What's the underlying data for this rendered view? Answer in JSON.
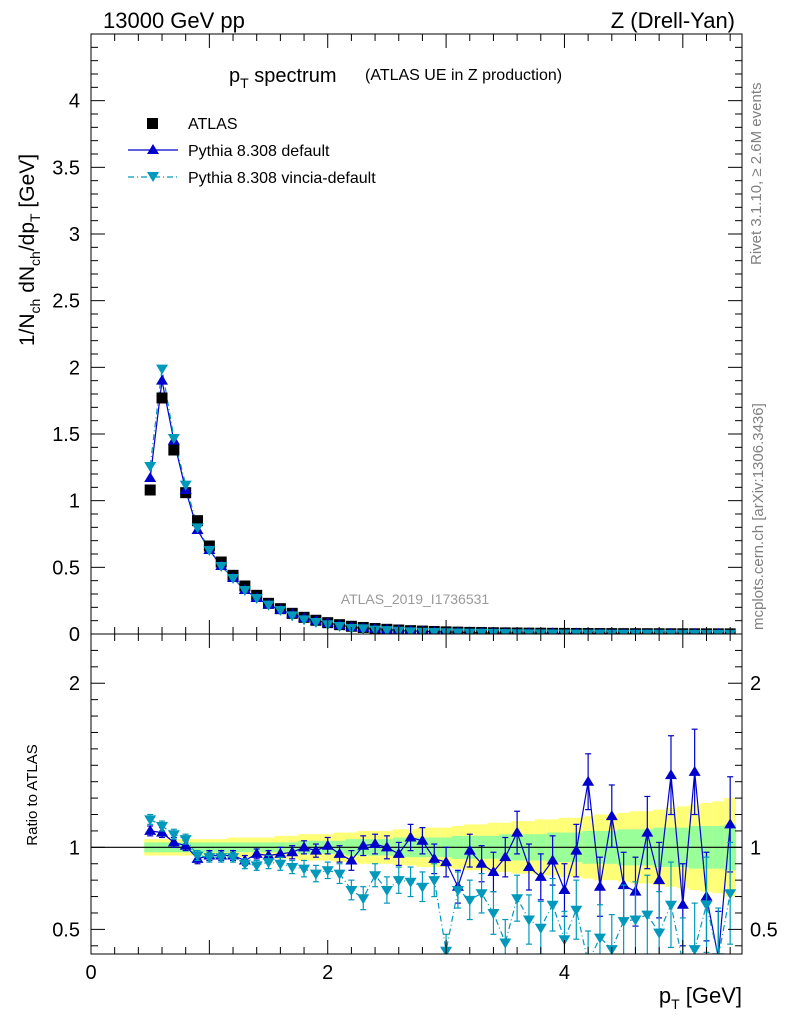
{
  "header": {
    "left": "13000 GeV pp",
    "right": "Z (Drell-Yan)"
  },
  "side": {
    "rivet": "Rivet 3.1.10, ≥ 2.6M events",
    "mcplots": "mcplots.cern.ch [arXiv:1306.3436]"
  },
  "main": {
    "title_main": "p",
    "title_sub": "T",
    "title_rest": " spectrum",
    "title_paren": "(ATLAS UE in Z production)",
    "ylabel": "1/N",
    "watermark": "ATLAS_2019_I1736531"
  },
  "ratio": {
    "ylabel": "Ratio to ATLAS"
  },
  "xaxis": {
    "label_main": "p",
    "label_sub": "T",
    "label_unit": " [GeV]"
  },
  "chart_data": [
    {
      "type": "scatter",
      "panel": "main",
      "xlim": [
        0,
        5.5
      ],
      "ylim": [
        0,
        4.5
      ],
      "yticks": [
        "0",
        "0.5",
        "1",
        "1.5",
        "2",
        "2.5",
        "3",
        "3.5",
        "4"
      ],
      "xticks": [
        "0",
        "2",
        "4"
      ],
      "x": [
        0.5,
        0.6,
        0.7,
        0.8,
        0.9,
        1.0,
        1.1,
        1.2,
        1.3,
        1.4,
        1.5,
        1.6,
        1.7,
        1.8,
        1.9,
        2.0,
        2.1,
        2.2,
        2.3,
        2.4,
        2.5,
        2.6,
        2.7,
        2.8,
        2.9,
        3.0,
        3.1,
        3.2,
        3.3,
        3.4,
        3.5,
        3.6,
        3.7,
        3.8,
        3.9,
        4.0,
        4.1,
        4.2,
        4.3,
        4.4,
        4.5,
        4.6,
        4.7,
        4.8,
        4.9,
        5.0,
        5.1,
        5.2,
        5.3,
        5.4
      ],
      "series": [
        {
          "name": "ATLAS",
          "color": "#000000",
          "marker": "square",
          "values": [
            1.08,
            1.77,
            1.38,
            1.06,
            0.85,
            0.66,
            0.54,
            0.44,
            0.36,
            0.29,
            0.23,
            0.19,
            0.155,
            0.125,
            0.103,
            0.085,
            0.07,
            0.058,
            0.049,
            0.041,
            0.035,
            0.03,
            0.025,
            0.022,
            0.019,
            0.016,
            0.014,
            0.012,
            0.011,
            0.0095,
            0.0085,
            0.0075,
            0.0066,
            0.0058,
            0.0051,
            0.0046,
            0.0041,
            0.0037,
            0.0033,
            0.003,
            0.0027,
            0.0024,
            0.0022,
            0.002,
            0.0018,
            0.0016,
            0.0015,
            0.0013,
            0.0012,
            0.0011
          ]
        },
        {
          "name": "Pythia 8.308 default",
          "color": "#0000cc",
          "marker": "triangle-up",
          "line": "solid",
          "values": [
            1.17,
            1.9,
            1.45,
            1.08,
            0.78,
            0.63,
            0.51,
            0.42,
            0.33,
            0.27,
            0.22,
            0.18,
            0.15,
            0.12,
            0.1,
            0.083,
            0.067,
            0.053,
            0.046,
            0.039,
            0.033,
            0.027,
            0.023,
            0.02,
            0.017,
            0.015,
            0.013,
            0.011,
            0.01,
            0.009,
            0.008,
            0.007,
            0.006,
            0.005,
            0.0045,
            0.004,
            0.0036,
            0.0033,
            0.003,
            0.0028,
            0.0025,
            0.0022,
            0.002,
            0.0018,
            0.0016,
            0.0015,
            0.0013,
            0.0012,
            0.0011,
            0.001
          ]
        },
        {
          "name": "Pythia 8.308 vincia-default",
          "color": "#0099bb",
          "marker": "triangle-down",
          "line": "dash-dot",
          "values": [
            1.26,
            1.99,
            1.47,
            1.12,
            0.8,
            0.63,
            0.51,
            0.42,
            0.33,
            0.27,
            0.22,
            0.18,
            0.14,
            0.11,
            0.09,
            0.073,
            0.06,
            0.045,
            0.042,
            0.033,
            0.029,
            0.024,
            0.02,
            0.017,
            0.015,
            0.013,
            0.011,
            0.01,
            0.009,
            0.008,
            0.007,
            0.006,
            0.005,
            0.0045,
            0.004,
            0.0035,
            0.003,
            0.0028,
            0.0025,
            0.0023,
            0.0021,
            0.0019,
            0.0017,
            0.0015,
            0.0014,
            0.0012,
            0.0011,
            0.001,
            0.0009,
            0.0008
          ]
        }
      ]
    },
    {
      "type": "scatter",
      "panel": "ratio",
      "xlim": [
        0,
        5.5
      ],
      "ylim": [
        0.35,
        2.3
      ],
      "yticks": [
        "0.5",
        "1",
        "2"
      ],
      "x": [
        0.5,
        0.6,
        0.7,
        0.8,
        0.9,
        1.0,
        1.1,
        1.2,
        1.3,
        1.4,
        1.5,
        1.6,
        1.7,
        1.8,
        1.9,
        2.0,
        2.1,
        2.2,
        2.3,
        2.4,
        2.5,
        2.6,
        2.7,
        2.8,
        2.9,
        3.0,
        3.1,
        3.2,
        3.3,
        3.4,
        3.5,
        3.6,
        3.7,
        3.8,
        3.9,
        4.0,
        4.1,
        4.2,
        4.3,
        4.4,
        4.5,
        4.6,
        4.7,
        4.8,
        4.9,
        5.0,
        5.1,
        5.2,
        5.3,
        5.4
      ],
      "band_green_halfwidth": [
        0.03,
        0.03,
        0.03,
        0.03,
        0.03,
        0.03,
        0.03,
        0.03,
        0.03,
        0.03,
        0.03,
        0.03,
        0.03,
        0.04,
        0.04,
        0.04,
        0.04,
        0.05,
        0.05,
        0.05,
        0.05,
        0.06,
        0.06,
        0.06,
        0.06,
        0.06,
        0.07,
        0.07,
        0.07,
        0.07,
        0.08,
        0.08,
        0.08,
        0.08,
        0.09,
        0.09,
        0.09,
        0.1,
        0.1,
        0.1,
        0.11,
        0.11,
        0.11,
        0.12,
        0.12,
        0.12,
        0.13,
        0.13,
        0.13,
        0.14
      ],
      "band_yellow_halfwidth": [
        0.05,
        0.05,
        0.05,
        0.05,
        0.05,
        0.05,
        0.05,
        0.06,
        0.06,
        0.06,
        0.06,
        0.07,
        0.07,
        0.08,
        0.08,
        0.08,
        0.09,
        0.09,
        0.1,
        0.1,
        0.1,
        0.11,
        0.11,
        0.12,
        0.12,
        0.12,
        0.13,
        0.14,
        0.14,
        0.15,
        0.15,
        0.16,
        0.16,
        0.17,
        0.17,
        0.18,
        0.18,
        0.19,
        0.2,
        0.2,
        0.21,
        0.22,
        0.22,
        0.23,
        0.24,
        0.25,
        0.26,
        0.27,
        0.28,
        0.3
      ],
      "series": [
        {
          "name": "Pythia 8.308 default",
          "color": "#0000cc",
          "marker": "triangle-up",
          "line": "solid",
          "values": [
            1.1,
            1.09,
            1.03,
            1.01,
            0.93,
            0.95,
            0.95,
            0.95,
            0.92,
            0.96,
            0.95,
            0.96,
            0.97,
            1.0,
            0.98,
            1.01,
            0.96,
            0.92,
            1.01,
            1.02,
            1.0,
            0.96,
            1.06,
            1.04,
            0.93,
            0.91,
            0.76,
            0.98,
            0.9,
            0.85,
            0.94,
            1.09,
            0.88,
            0.82,
            0.92,
            0.74,
            0.98,
            1.4,
            0.76,
            1.19,
            0.77,
            0.73,
            1.09,
            0.8,
            1.44,
            0.65,
            1.46,
            0.7,
            0.33,
            1.14
          ],
          "err": [
            0.03,
            0.03,
            0.03,
            0.03,
            0.03,
            0.03,
            0.03,
            0.03,
            0.03,
            0.03,
            0.03,
            0.04,
            0.04,
            0.04,
            0.04,
            0.05,
            0.05,
            0.06,
            0.06,
            0.06,
            0.07,
            0.07,
            0.08,
            0.08,
            0.09,
            0.09,
            0.1,
            0.1,
            0.11,
            0.12,
            0.12,
            0.13,
            0.14,
            0.14,
            0.15,
            0.16,
            0.16,
            0.17,
            0.18,
            0.19,
            0.2,
            0.21,
            0.22,
            0.23,
            0.24,
            0.25,
            0.26,
            0.27,
            0.28,
            0.29
          ]
        },
        {
          "name": "Pythia 8.308 vincia-default",
          "color": "#0099bb",
          "marker": "triangle-down",
          "line": "dash-dot",
          "values": [
            1.17,
            1.13,
            1.08,
            1.05,
            0.95,
            0.94,
            0.94,
            0.94,
            0.9,
            0.89,
            0.91,
            0.9,
            0.88,
            0.87,
            0.84,
            0.86,
            0.84,
            0.74,
            0.69,
            0.83,
            0.74,
            0.8,
            0.79,
            0.76,
            0.8,
            0.37,
            0.74,
            0.68,
            0.72,
            0.6,
            0.42,
            0.69,
            0.56,
            0.51,
            0.65,
            0.44,
            0.62,
            0.3,
            0.45,
            0.38,
            0.55,
            0.56,
            0.59,
            0.48,
            0.65,
            0.3,
            0.38,
            0.65,
            0.33,
            0.72
          ],
          "err": [
            0.03,
            0.03,
            0.03,
            0.03,
            0.03,
            0.03,
            0.03,
            0.03,
            0.03,
            0.03,
            0.04,
            0.04,
            0.04,
            0.05,
            0.05,
            0.05,
            0.06,
            0.06,
            0.07,
            0.07,
            0.08,
            0.08,
            0.09,
            0.09,
            0.1,
            0.1,
            0.11,
            0.12,
            0.12,
            0.13,
            0.14,
            0.14,
            0.15,
            0.16,
            0.16,
            0.17,
            0.18,
            0.19,
            0.2,
            0.21,
            0.22,
            0.23,
            0.24,
            0.25,
            0.26,
            0.27,
            0.28,
            0.29,
            0.3,
            0.31
          ]
        }
      ]
    }
  ]
}
